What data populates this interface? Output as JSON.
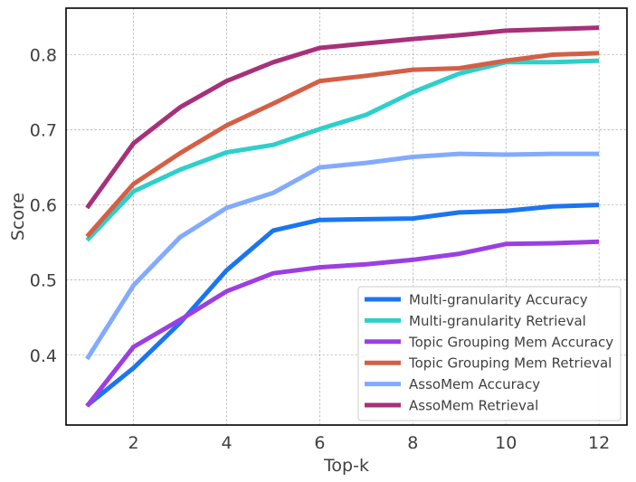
{
  "chart_data": {
    "type": "line",
    "title": "",
    "xlabel": "Top-k",
    "ylabel": "Score",
    "xlim": [
      0.55,
      12.6
    ],
    "ylim": [
      0.307,
      0.862
    ],
    "xticks": [
      2,
      4,
      6,
      8,
      10,
      12
    ],
    "yticks": [
      0.4,
      0.5,
      0.6,
      0.7,
      0.8
    ],
    "xtick_labels": [
      "2",
      "4",
      "6",
      "8",
      "10",
      "12"
    ],
    "ytick_labels": [
      "0.4",
      "0.5",
      "0.6",
      "0.7",
      "0.8"
    ],
    "grid": true,
    "legend_position": "lower-right",
    "x": [
      1,
      2,
      3,
      4,
      5,
      6,
      7,
      8,
      9,
      10,
      11,
      12
    ],
    "series": [
      {
        "name": "Multi-granularity Accuracy",
        "color": "#1a75f0",
        "values": [
          0.333,
          0.383,
          0.443,
          0.513,
          0.566,
          0.58,
          0.581,
          0.582,
          0.59,
          0.592,
          0.598,
          0.6
        ]
      },
      {
        "name": "Multi-granularity Retrieval",
        "color": "#2ecfcb",
        "values": [
          0.553,
          0.618,
          0.647,
          0.67,
          0.68,
          0.701,
          0.72,
          0.75,
          0.775,
          0.79,
          0.79,
          0.792
        ]
      },
      {
        "name": "Topic Grouping Mem Accuracy",
        "color": "#9b3fe3",
        "values": [
          0.332,
          0.411,
          0.447,
          0.485,
          0.509,
          0.517,
          0.521,
          0.527,
          0.535,
          0.548,
          0.549,
          0.551
        ]
      },
      {
        "name": "Topic Grouping Mem Retrieval",
        "color": "#d45f45",
        "values": [
          0.558,
          0.628,
          0.669,
          0.706,
          0.735,
          0.765,
          0.772,
          0.78,
          0.782,
          0.792,
          0.8,
          0.802
        ]
      },
      {
        "name": "AssoMem Accuracy",
        "color": "#82aaff",
        "values": [
          0.395,
          0.493,
          0.557,
          0.596,
          0.616,
          0.65,
          0.656,
          0.664,
          0.668,
          0.667,
          0.668,
          0.668
        ]
      },
      {
        "name": "AssoMem Retrieval",
        "color": "#a8307a",
        "values": [
          0.596,
          0.682,
          0.73,
          0.765,
          0.79,
          0.809,
          0.815,
          0.821,
          0.826,
          0.832,
          0.834,
          0.836
        ]
      }
    ]
  }
}
